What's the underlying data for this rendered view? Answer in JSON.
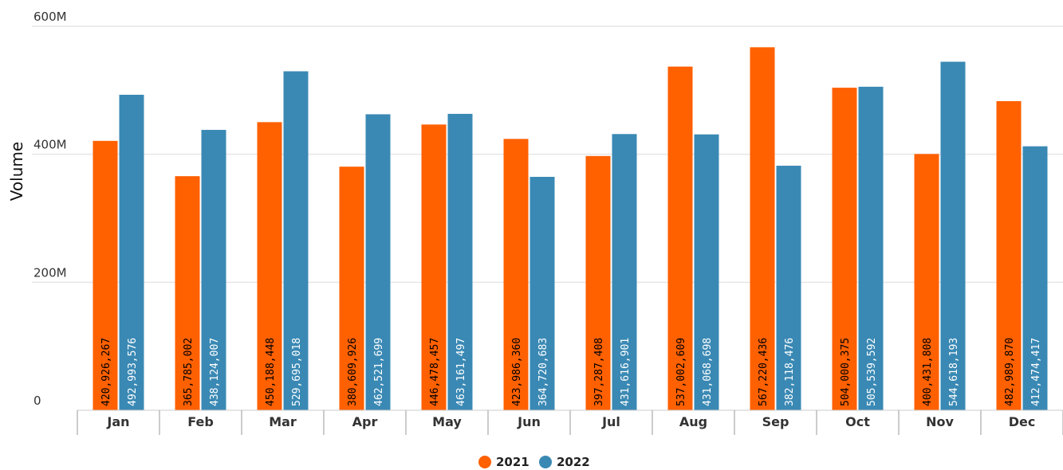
{
  "chart_data": {
    "type": "bar",
    "categories": [
      "Jan",
      "Feb",
      "Mar",
      "Apr",
      "May",
      "Jun",
      "Jul",
      "Aug",
      "Sep",
      "Oct",
      "Nov",
      "Dec"
    ],
    "series": [
      {
        "name": "2021",
        "color": "#ff6000",
        "values": [
          420926267,
          365785002,
          450188448,
          380609926,
          446478457,
          423986360,
          397287408,
          537002609,
          567220436,
          504000375,
          400431808,
          482989870
        ]
      },
      {
        "name": "2022",
        "color": "#3a89b4",
        "values": [
          492993576,
          438124007,
          529695018,
          462521699,
          463161497,
          364720683,
          431616901,
          431068698,
          382118476,
          505539592,
          544618193,
          412474417
        ]
      }
    ],
    "data_labels": [
      [
        "420,926,267",
        "365,785,002",
        "450,188,448",
        "380,609,926",
        "446,478,457",
        "423,986,360",
        "397,287,408",
        "537,002,609",
        "567,220,436",
        "504,000,375",
        "400,431,808",
        "482,989,870"
      ],
      [
        "492,993,576",
        "438,124,007",
        "529,695,018",
        "462,521,699",
        "463,161,497",
        "364,720,683",
        "431,616,901",
        "431,068,698",
        "382,118,476",
        "505,539,592",
        "544,618,193",
        "412,474,417"
      ]
    ],
    "yticks": [
      {
        "value": 0,
        "label": "0"
      },
      {
        "value": 200000000,
        "label": "200M"
      },
      {
        "value": 400000000,
        "label": "400M"
      },
      {
        "value": 600000000,
        "label": "600M"
      }
    ],
    "ylim": [
      0,
      600000000
    ],
    "ylabel": "Volume",
    "xlabel": "",
    "title": "",
    "legend_position": "bottom-center",
    "grid": true
  }
}
